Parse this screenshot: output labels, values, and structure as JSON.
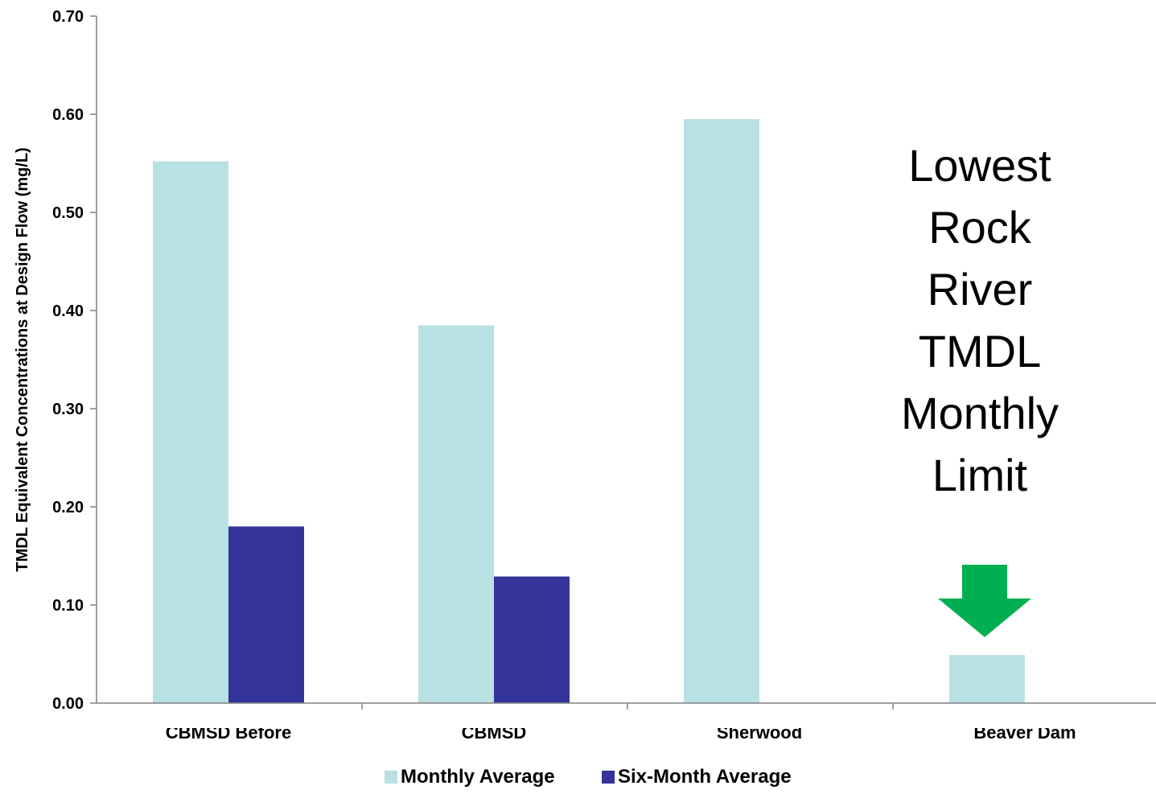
{
  "chart_data": {
    "type": "bar",
    "title": "",
    "xlabel": "",
    "ylabel": "TMDL Equivalent Concentrations at Design Flow (mg/L)",
    "ylim": [
      0,
      0.7
    ],
    "yticks": [
      "0.00",
      "0.10",
      "0.20",
      "0.30",
      "0.40",
      "0.50",
      "0.60",
      "0.70"
    ],
    "categories": [
      "CBMSD Before",
      "CBMSD",
      "Sherwood",
      "Beaver Dam"
    ],
    "series": [
      {
        "name": "Monthly Average",
        "color": "#b9e0e3",
        "values": [
          0.552,
          0.385,
          0.595,
          0.049
        ]
      },
      {
        "name": "Six-Month Average",
        "color": "#333399",
        "values": [
          0.18,
          0.129,
          null,
          null
        ]
      }
    ],
    "legend": "bottom",
    "grid": false,
    "annotation": {
      "lines": [
        "Lowest",
        "Rock",
        "River",
        "TMDL",
        "Monthly",
        "Limit"
      ],
      "arrow_color": "#00b050",
      "arrow": "down",
      "target_category": "Beaver Dam"
    }
  }
}
